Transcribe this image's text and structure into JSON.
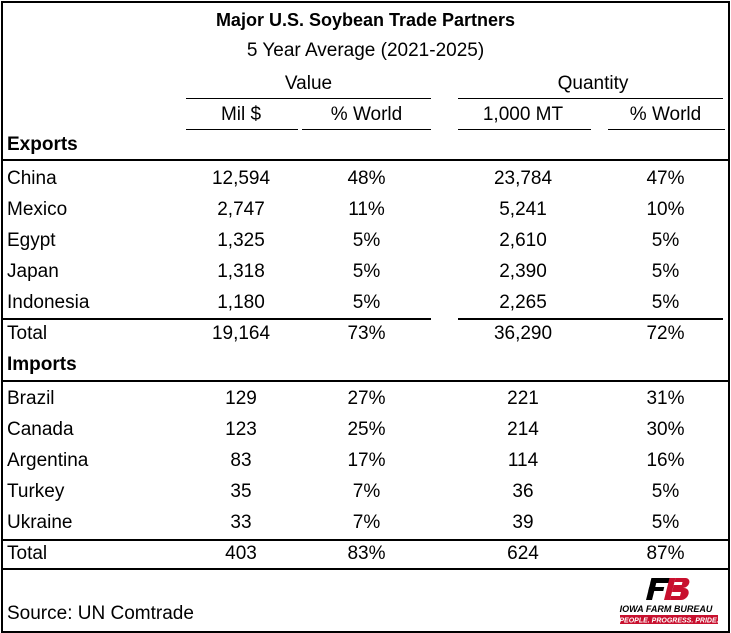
{
  "title": "Major U.S. Soybean Trade Partners",
  "subtitle": "5 Year Average (2021-2025)",
  "group_headers": {
    "value": "Value",
    "quantity": "Quantity"
  },
  "column_headers": {
    "value_mil": "Mil $",
    "value_pct": "% World",
    "qty_mt": "1,000 MT",
    "qty_pct": "% World"
  },
  "sections": [
    {
      "label": "Exports",
      "rows": [
        {
          "partner": "China",
          "value": "12,594",
          "value_pct": "48%",
          "qty": "23,784",
          "qty_pct": "47%"
        },
        {
          "partner": "Mexico",
          "value": "2,747",
          "value_pct": "11%",
          "qty": "5,241",
          "qty_pct": "10%"
        },
        {
          "partner": "Egypt",
          "value": "1,325",
          "value_pct": "5%",
          "qty": "2,610",
          "qty_pct": "5%"
        },
        {
          "partner": "Japan",
          "value": "1,318",
          "value_pct": "5%",
          "qty": "2,390",
          "qty_pct": "5%"
        },
        {
          "partner": "Indonesia",
          "value": "1,180",
          "value_pct": "5%",
          "qty": "2,265",
          "qty_pct": "5%"
        }
      ],
      "total": {
        "label": "Total",
        "value": "19,164",
        "value_pct": "73%",
        "qty": "36,290",
        "qty_pct": "72%"
      }
    },
    {
      "label": "Imports",
      "rows": [
        {
          "partner": "Brazil",
          "value": "129",
          "value_pct": "27%",
          "qty": "221",
          "qty_pct": "31%"
        },
        {
          "partner": "Canada",
          "value": "123",
          "value_pct": "25%",
          "qty": "214",
          "qty_pct": "30%"
        },
        {
          "partner": "Argentina",
          "value": "83",
          "value_pct": "17%",
          "qty": "114",
          "qty_pct": "16%"
        },
        {
          "partner": "Turkey",
          "value": "35",
          "value_pct": "7%",
          "qty": "36",
          "qty_pct": "5%"
        },
        {
          "partner": "Ukraine",
          "value": "33",
          "value_pct": "7%",
          "qty": "39",
          "qty_pct": "5%"
        }
      ],
      "total": {
        "label": "Total",
        "value": "403",
        "value_pct": "83%",
        "qty": "624",
        "qty_pct": "87%"
      }
    }
  ],
  "source": "Source: UN Comtrade",
  "logo": {
    "mark": "FB",
    "name": "IOWA FARM BUREAU",
    "tagline": "PEOPLE. PROGRESS. PRIDE.",
    "color": "#c8102e"
  }
}
